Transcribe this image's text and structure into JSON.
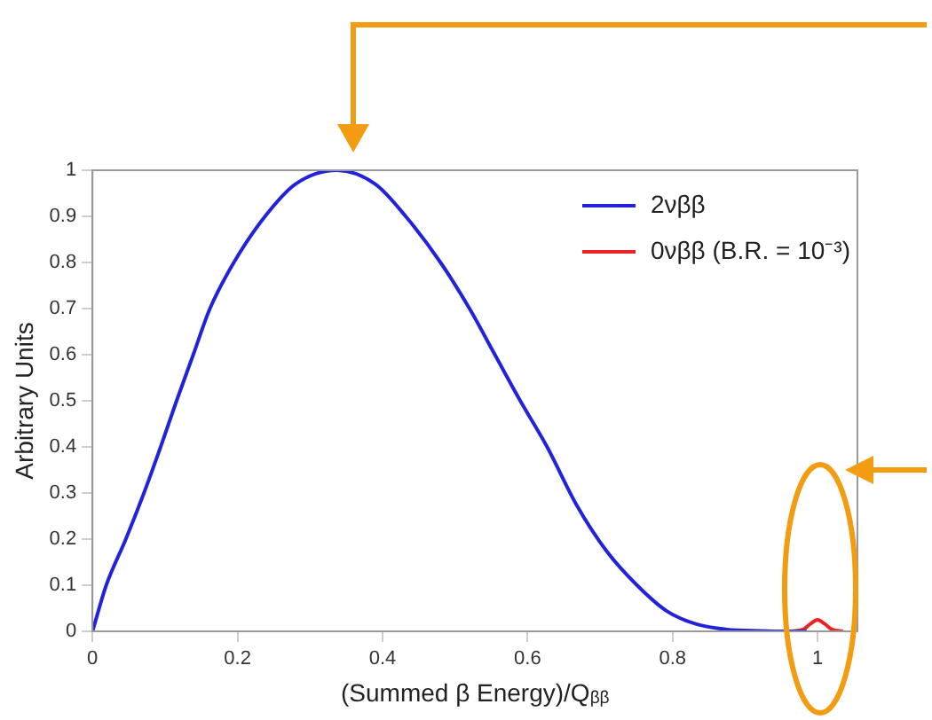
{
  "chart_data": {
    "type": "line",
    "xlabel": "(Summed β Energy)/Qᵦᵦ",
    "ylabel": "Arbitrary Units",
    "xlim": [
      0,
      1.055
    ],
    "xticks": [
      0,
      0.2,
      0.4,
      0.6,
      0.8,
      1
    ],
    "ylim": [
      0,
      1
    ],
    "yticks": [
      0,
      0.1,
      0.2,
      0.3,
      0.4,
      0.5,
      0.6,
      0.7,
      0.8,
      0.9,
      1
    ],
    "grid": false,
    "legend": "top right",
    "marker": "none",
    "line_style": "solid",
    "series": [
      {
        "name": "2νββ",
        "color": "#2222dd",
        "x": [
          0,
          0.019,
          0.046,
          0.071,
          0.094,
          0.116,
          0.139,
          0.162,
          0.195,
          0.238,
          0.28,
          0.337,
          0.39,
          0.432,
          0.48,
          0.52,
          0.555,
          0.59,
          0.627,
          0.668,
          0.709,
          0.751,
          0.792,
          0.834,
          0.875,
          0.92,
          0.96,
          0.985
        ],
        "values": [
          0,
          0.1,
          0.2,
          0.3,
          0.4,
          0.5,
          0.6,
          0.7,
          0.8,
          0.9,
          0.97,
          1,
          0.97,
          0.9,
          0.8,
          0.7,
          0.6,
          0.5,
          0.4,
          0.273,
          0.174,
          0.1,
          0.044,
          0.015,
          0.004,
          0.001,
          0,
          0
        ]
      },
      {
        "name": "0νββ (B.R. = 10⁻³)",
        "color": "#ee2222",
        "x": [
          0.965,
          0.98,
          0.99,
          1,
          1.01,
          1.02,
          1.035
        ],
        "values": [
          0,
          0.004,
          0.016,
          0.025,
          0.016,
          0.004,
          0
        ]
      }
    ]
  }
}
